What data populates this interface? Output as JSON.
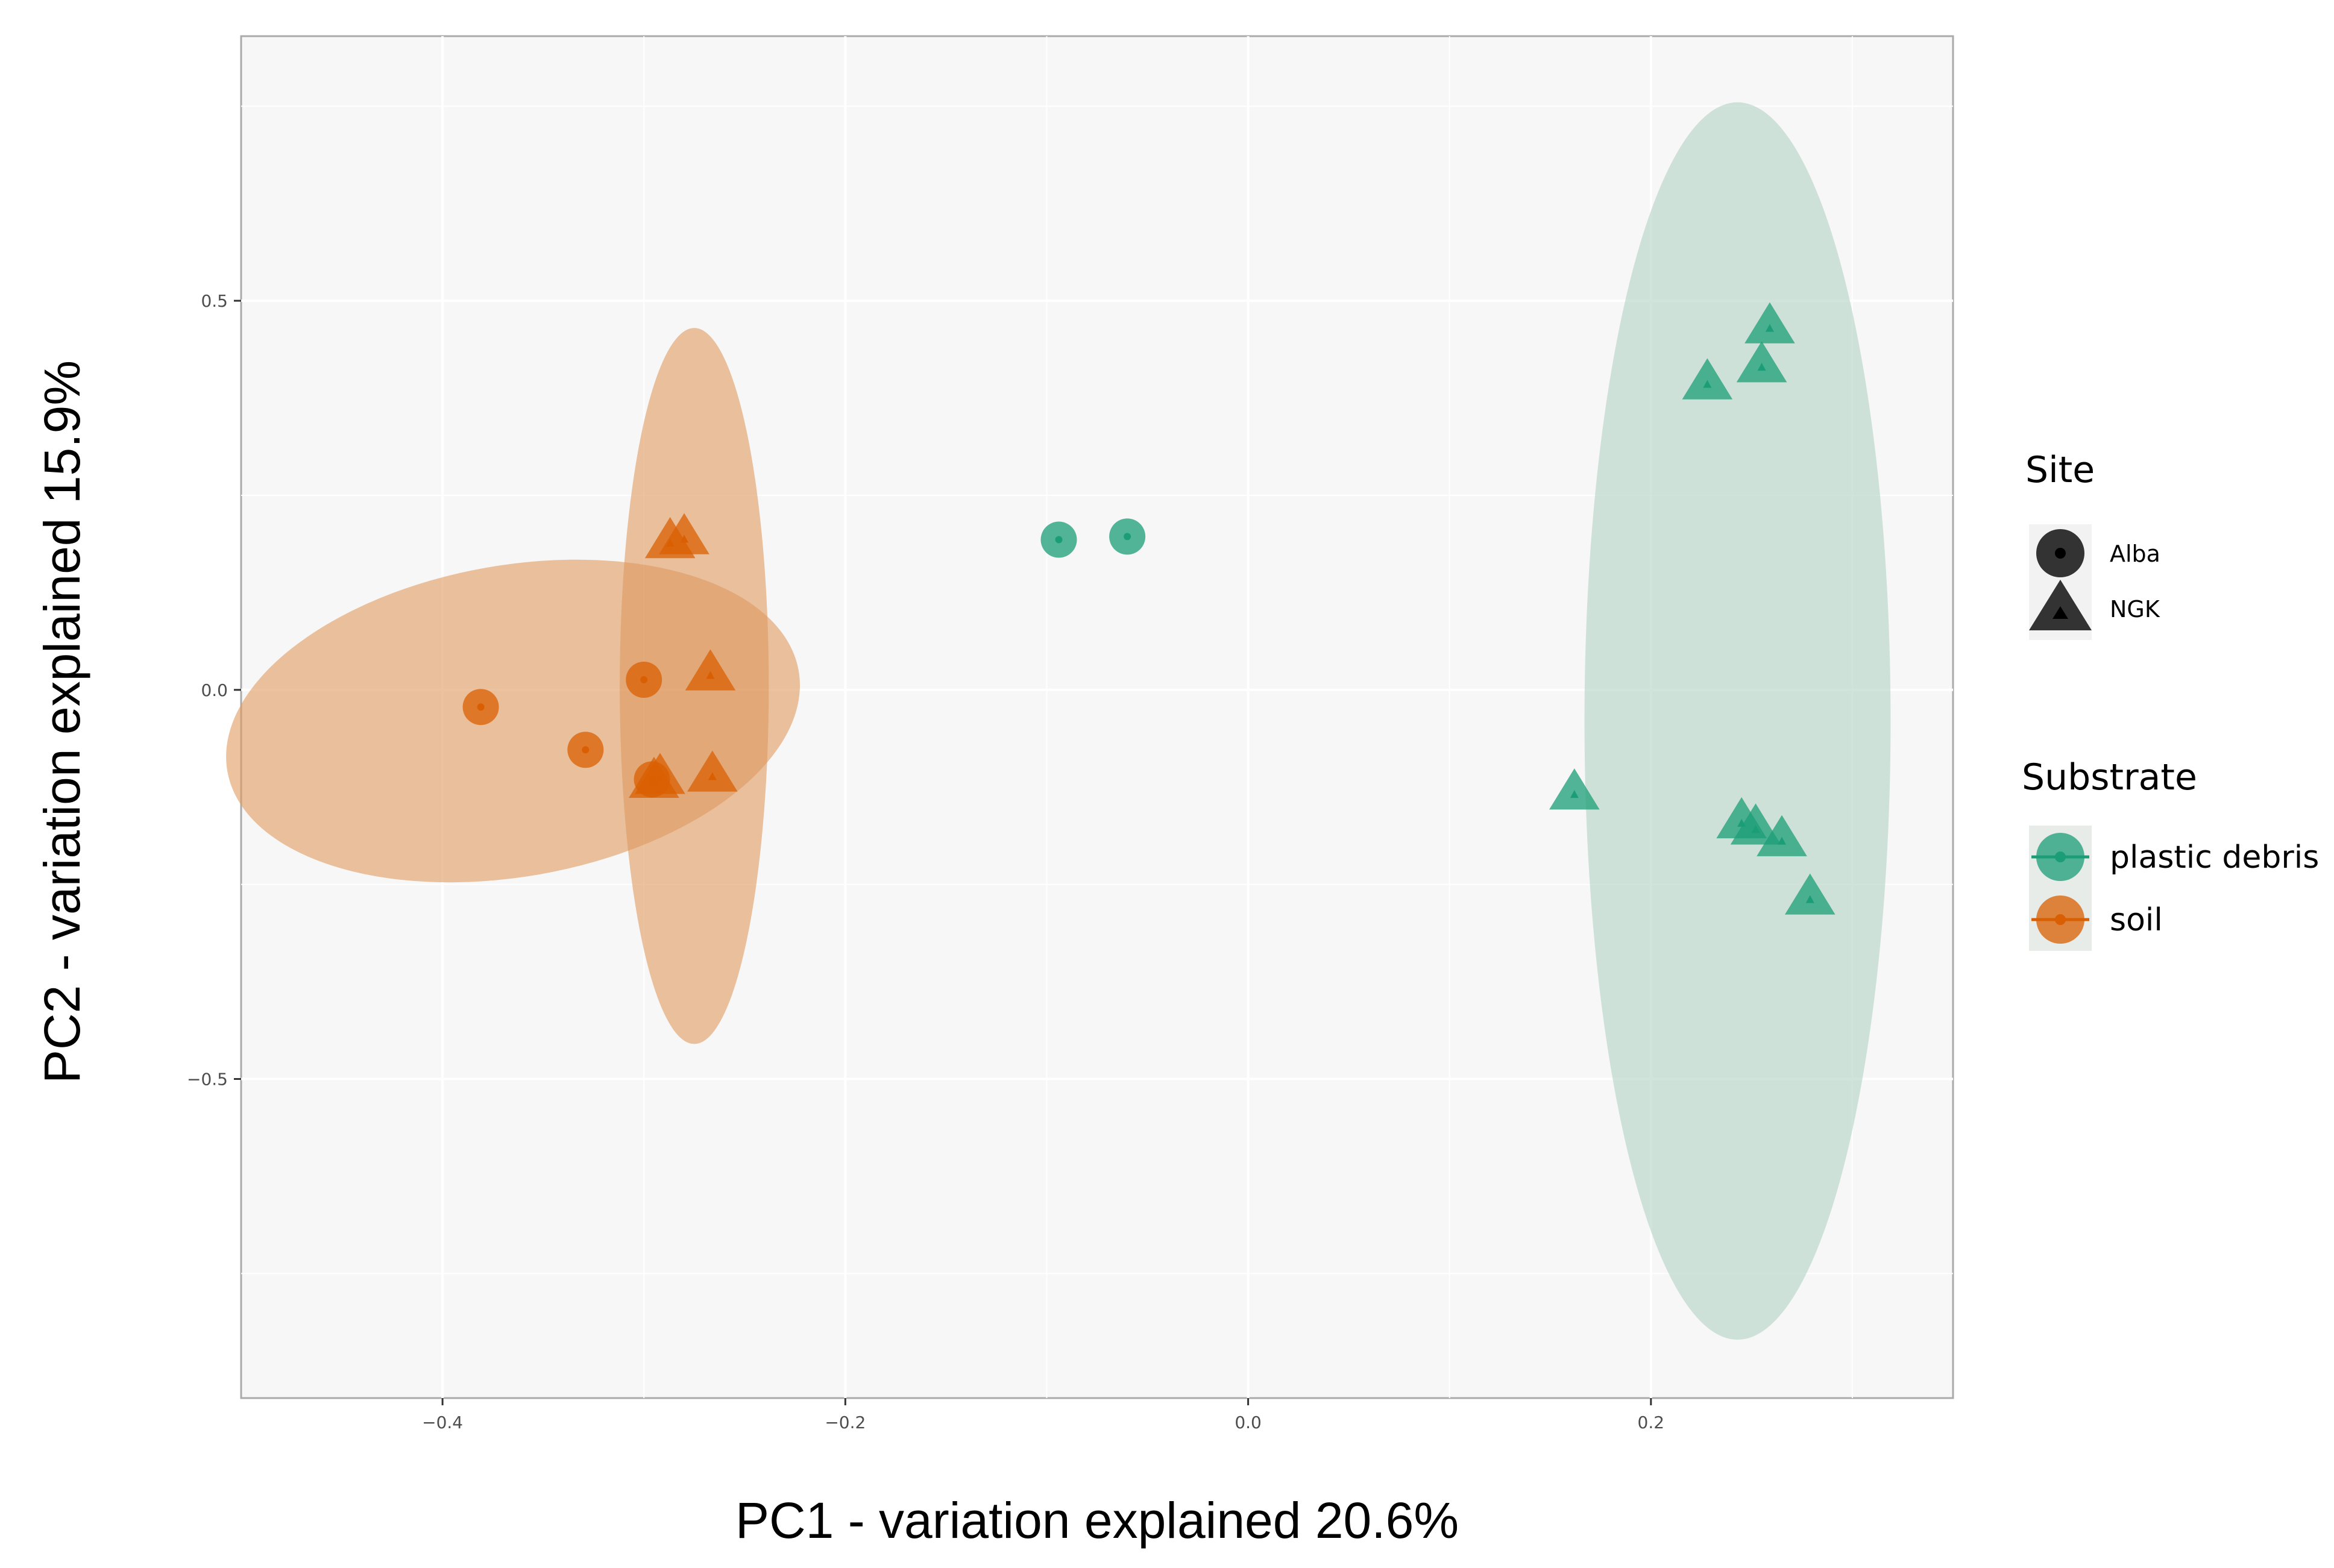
{
  "chart_data": {
    "type": "scatter",
    "xlabel": "PC1 - variation explained 20.6%",
    "ylabel": "PC2 - variation explained 15.9%",
    "xlim": [
      -0.5,
      0.35
    ],
    "ylim": [
      -0.91,
      0.84
    ],
    "x_ticks": [
      -0.4,
      -0.2,
      0.0,
      0.2
    ],
    "x_tick_labels": [
      "−0.4",
      "−0.2",
      "0.0",
      "0.2"
    ],
    "y_ticks": [
      0.5,
      0.0,
      -0.5
    ],
    "y_tick_labels": [
      "0.5",
      "0.0",
      "−0.5"
    ],
    "grid": true,
    "colors": {
      "plastic_debris": "#1b9e77",
      "soil": "#d95f02",
      "plastic_ellipse": "#b8d6c8",
      "soil_ellipse": "#e09a5f",
      "panel_bg": "#f7f7f7"
    },
    "ellipses": [
      {
        "group": "soil",
        "cx": -0.275,
        "cy": 0.005,
        "rx": 0.037,
        "ry": 0.46,
        "angle_deg": 0
      },
      {
        "group": "soil",
        "cx": -0.365,
        "cy": -0.04,
        "rx": 0.144,
        "ry": 0.2,
        "angle_deg": -10
      },
      {
        "group": "plastic debris",
        "cx": 0.243,
        "cy": -0.04,
        "rx": 0.076,
        "ry": 0.795,
        "angle_deg": 0
      }
    ],
    "series": [
      {
        "substrate": "soil",
        "site": "Alba",
        "points": [
          {
            "x": -0.381,
            "y": -0.022
          },
          {
            "x": -0.329,
            "y": -0.077
          },
          {
            "x": -0.3,
            "y": 0.013
          },
          {
            "x": -0.296,
            "y": -0.115
          }
        ]
      },
      {
        "substrate": "soil",
        "site": "NGK",
        "points": [
          {
            "x": -0.287,
            "y": 0.188
          },
          {
            "x": -0.28,
            "y": 0.193
          },
          {
            "x": -0.267,
            "y": 0.018
          },
          {
            "x": -0.266,
            "y": -0.112
          },
          {
            "x": -0.295,
            "y": -0.12
          },
          {
            "x": -0.292,
            "y": -0.115
          }
        ]
      },
      {
        "substrate": "plastic debris",
        "site": "Alba",
        "points": [
          {
            "x": -0.094,
            "y": 0.193
          },
          {
            "x": -0.06,
            "y": 0.197
          }
        ]
      },
      {
        "substrate": "plastic debris",
        "site": "NGK",
        "points": [
          {
            "x": 0.259,
            "y": 0.464
          },
          {
            "x": 0.255,
            "y": 0.414
          },
          {
            "x": 0.228,
            "y": 0.392
          },
          {
            "x": 0.162,
            "y": -0.135
          },
          {
            "x": 0.245,
            "y": -0.172
          },
          {
            "x": 0.252,
            "y": -0.18
          },
          {
            "x": 0.265,
            "y": -0.195
          },
          {
            "x": 0.279,
            "y": -0.27
          }
        ]
      }
    ],
    "legend": {
      "placement": "right",
      "site_title": "Site",
      "site_items": [
        "Alba",
        "NGK"
      ],
      "substrate_title": "Substrate",
      "substrate_items": [
        "plastic debris",
        "soil"
      ]
    }
  }
}
